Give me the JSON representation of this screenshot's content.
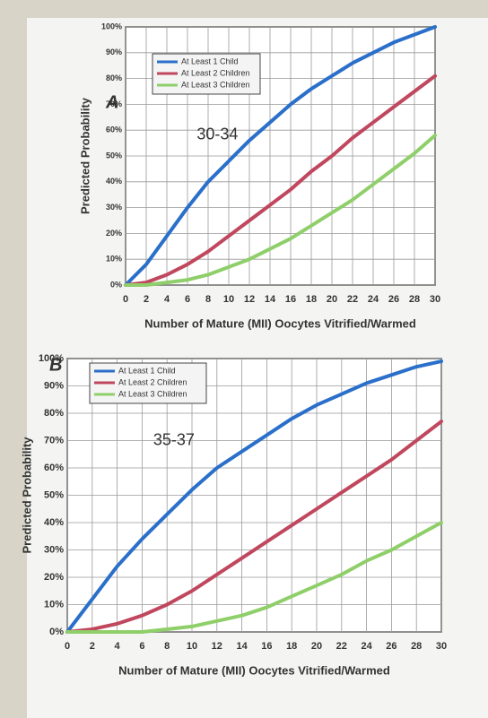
{
  "chart_data": [
    {
      "type": "line",
      "title": "A",
      "annotation": "30-34",
      "xlabel": "Number of Mature (MII) Oocytes Vitrified/Warmed",
      "ylabel": "Predicted Probability",
      "x": [
        0,
        2,
        4,
        6,
        8,
        10,
        12,
        14,
        16,
        18,
        20,
        22,
        24,
        26,
        28,
        30
      ],
      "series": [
        {
          "name": "At Least 1 Child",
          "color": "#2a6fc9",
          "values": [
            0,
            8,
            19,
            30,
            40,
            48,
            56,
            63,
            70,
            76,
            81,
            86,
            90,
            94,
            97,
            100
          ]
        },
        {
          "name": "At Least 2 Children",
          "color": "#c0475e",
          "values": [
            0,
            1,
            4,
            8,
            13,
            19,
            25,
            31,
            37,
            44,
            50,
            57,
            63,
            69,
            75,
            81
          ]
        },
        {
          "name": "At Least 3 Children",
          "color": "#8fcf6a",
          "values": [
            0,
            0,
            1,
            2,
            4,
            7,
            10,
            14,
            18,
            23,
            28,
            33,
            39,
            45,
            51,
            58
          ]
        }
      ],
      "xlim": [
        0,
        30
      ],
      "ylim": [
        0,
        100
      ],
      "xticks": [
        0,
        2,
        4,
        6,
        8,
        10,
        12,
        14,
        16,
        18,
        20,
        22,
        24,
        26,
        28,
        30
      ],
      "yticks": [
        {
          "value": 0,
          "label": "0%"
        },
        {
          "value": 10,
          "label": "10%"
        },
        {
          "value": 20,
          "label": "20%"
        },
        {
          "value": 30,
          "label": "30%"
        },
        {
          "value": 40,
          "label": "40%"
        },
        {
          "value": 50,
          "label": "50%"
        },
        {
          "value": 60,
          "label": "60%"
        },
        {
          "value": 70,
          "label": "70%"
        },
        {
          "value": 80,
          "label": "80%"
        },
        {
          "value": 90,
          "label": "90%"
        },
        {
          "value": 100,
          "label": "100%"
        }
      ],
      "grid": true,
      "legend": "upper left"
    },
    {
      "type": "line",
      "title": "B",
      "annotation": "35-37",
      "xlabel": "Number of Mature (MII) Oocytes Vitrified/Warmed",
      "ylabel": "Predicted Probability",
      "x": [
        0,
        2,
        4,
        6,
        8,
        10,
        12,
        14,
        16,
        18,
        20,
        22,
        24,
        26,
        28,
        30
      ],
      "series": [
        {
          "name": "At Least 1 Child",
          "color": "#2a6fc9",
          "values": [
            0,
            12,
            24,
            34,
            43,
            52,
            60,
            66,
            72,
            78,
            83,
            87,
            91,
            94,
            97,
            99
          ]
        },
        {
          "name": "At Least 2 Children",
          "color": "#c0475e",
          "values": [
            0,
            1,
            3,
            6,
            10,
            15,
            21,
            27,
            33,
            39,
            45,
            51,
            57,
            63,
            70,
            77
          ]
        },
        {
          "name": "At Least 3 Children",
          "color": "#8fcf6a",
          "values": [
            0,
            0,
            0,
            0,
            1,
            2,
            4,
            6,
            9,
            13,
            17,
            21,
            26,
            30,
            35,
            40
          ]
        }
      ],
      "xlim": [
        0,
        30
      ],
      "ylim": [
        0,
        100
      ],
      "xticks": [
        0,
        2,
        4,
        6,
        8,
        10,
        12,
        14,
        16,
        18,
        20,
        22,
        24,
        26,
        28,
        30
      ],
      "yticks": [
        {
          "value": 0,
          "label": "0%"
        },
        {
          "value": 10,
          "label": "10%"
        },
        {
          "value": 20,
          "label": "20%"
        },
        {
          "value": 30,
          "label": "30%"
        },
        {
          "value": 40,
          "label": "40%"
        },
        {
          "value": 50,
          "label": "50%"
        },
        {
          "value": 60,
          "label": "60%"
        },
        {
          "value": 70,
          "label": "70%"
        },
        {
          "value": 80,
          "label": "80%"
        },
        {
          "value": 90,
          "label": "90%"
        },
        {
          "value": 100,
          "label": "100%"
        }
      ],
      "grid": true,
      "legend": "upper left"
    }
  ]
}
